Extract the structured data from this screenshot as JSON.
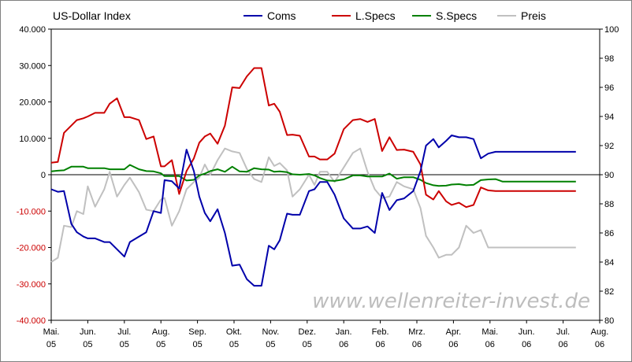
{
  "chart_data": {
    "type": "line",
    "title": "US-Dollar Index",
    "watermark": "www.wellenreiter-invest.de",
    "left_axis": {
      "ylim": [
        -40000,
        40000
      ],
      "ticks": [
        {
          "value": 40000,
          "label": "40.000",
          "negative": false
        },
        {
          "value": 30000,
          "label": "30.000",
          "negative": false
        },
        {
          "value": 20000,
          "label": "20.000",
          "negative": false
        },
        {
          "value": 10000,
          "label": "10.000",
          "negative": false
        },
        {
          "value": 0,
          "label": "0",
          "negative": false
        },
        {
          "value": -10000,
          "label": "-10.000",
          "negative": true
        },
        {
          "value": -20000,
          "label": "-20.000",
          "negative": true
        },
        {
          "value": -30000,
          "label": "-30.000",
          "negative": true
        },
        {
          "value": -40000,
          "label": "-40.000",
          "negative": true
        }
      ]
    },
    "right_axis": {
      "ylim": [
        80,
        100
      ],
      "ticks": [
        100,
        98,
        96,
        94,
        92,
        90,
        88,
        86,
        84,
        82,
        80
      ]
    },
    "x_axis": {
      "range": [
        0,
        15
      ],
      "labels": [
        {
          "month": "Mai.",
          "year": "05"
        },
        {
          "month": "Jun.",
          "year": "05"
        },
        {
          "month": "Jul.",
          "year": "05"
        },
        {
          "month": "Aug.",
          "year": "05"
        },
        {
          "month": "Sep.",
          "year": "05"
        },
        {
          "month": "Okt.",
          "year": "05"
        },
        {
          "month": "Nov.",
          "year": "05"
        },
        {
          "month": "Dez.",
          "year": "05"
        },
        {
          "month": "Jan.",
          "year": "06"
        },
        {
          "month": "Feb.",
          "year": "06"
        },
        {
          "month": "Mrz.",
          "year": "06"
        },
        {
          "month": "Apr.",
          "year": "06"
        },
        {
          "month": "Mai.",
          "year": "06"
        },
        {
          "month": "Jun.",
          "year": "06"
        },
        {
          "month": "Jul.",
          "year": "06"
        },
        {
          "month": "Aug.",
          "year": "06"
        }
      ]
    },
    "grid": false,
    "legend": "top",
    "series": [
      {
        "name": "Coms",
        "color": "#0000aa",
        "axis": "left",
        "x": [
          0,
          0.18,
          0.35,
          0.55,
          0.7,
          0.88,
          1.0,
          1.2,
          1.45,
          1.6,
          1.8,
          2.0,
          2.15,
          2.4,
          2.6,
          2.8,
          3.0,
          3.1,
          3.3,
          3.5,
          3.7,
          3.9,
          4.05,
          4.2,
          4.35,
          4.55,
          4.75,
          4.95,
          5.15,
          5.35,
          5.55,
          5.75,
          5.95,
          6.1,
          6.25,
          6.45,
          6.6,
          6.8,
          7.05,
          7.2,
          7.35,
          7.55,
          7.75,
          8.0,
          8.25,
          8.45,
          8.65,
          8.85,
          9.05,
          9.25,
          9.45,
          9.65,
          9.9,
          10.1,
          10.25,
          10.45,
          10.6,
          10.8,
          10.95,
          11.15,
          11.35,
          11.55,
          11.75,
          11.95,
          12.15,
          12.35,
          12.55,
          12.75,
          12.95,
          13.15,
          13.35,
          13.55,
          13.75,
          14.0,
          14.2,
          14.35
        ],
        "values": [
          -4000,
          -4700,
          -4500,
          -13500,
          -15800,
          -17000,
          -17500,
          -17500,
          -18500,
          -18500,
          -20500,
          -22500,
          -18500,
          -17000,
          -15800,
          -10000,
          -10500,
          -1500,
          -1800,
          -3800,
          6900,
          1000,
          -6000,
          -10500,
          -12800,
          -9500,
          -16000,
          -25000,
          -24700,
          -28700,
          -30500,
          -30500,
          -19500,
          -20500,
          -18000,
          -10700,
          -11000,
          -11000,
          -4500,
          -4000,
          -2000,
          -2000,
          -5500,
          -12000,
          -14800,
          -14800,
          -14200,
          -16000,
          -5000,
          -9700,
          -7000,
          -6500,
          -4500,
          1000,
          8000,
          9800,
          7500,
          9300,
          10800,
          10300,
          10300,
          9800,
          4500,
          5800,
          6300,
          6300,
          6300,
          6300,
          6300,
          6300,
          6300,
          6300,
          6300,
          6300,
          6300,
          6300
        ]
      },
      {
        "name": "L.Specs",
        "color": "#cc0000",
        "axis": "left",
        "x": [
          0,
          0.18,
          0.35,
          0.55,
          0.7,
          0.88,
          1.0,
          1.2,
          1.45,
          1.6,
          1.8,
          2.0,
          2.15,
          2.4,
          2.6,
          2.8,
          3.0,
          3.1,
          3.3,
          3.5,
          3.7,
          3.9,
          4.05,
          4.2,
          4.35,
          4.55,
          4.75,
          4.95,
          5.15,
          5.35,
          5.55,
          5.75,
          5.95,
          6.1,
          6.25,
          6.45,
          6.6,
          6.8,
          7.05,
          7.2,
          7.35,
          7.55,
          7.75,
          8.0,
          8.25,
          8.45,
          8.65,
          8.85,
          9.05,
          9.25,
          9.45,
          9.65,
          9.9,
          10.1,
          10.25,
          10.45,
          10.6,
          10.8,
          10.95,
          11.15,
          11.35,
          11.55,
          11.75,
          11.95,
          12.15,
          12.35,
          12.55,
          12.75,
          12.95,
          13.15,
          13.35,
          13.55,
          13.75,
          14.0,
          14.2,
          14.35
        ],
        "values": [
          3300,
          3500,
          11500,
          13500,
          15000,
          15500,
          16000,
          17000,
          17000,
          19500,
          21000,
          15800,
          15800,
          15000,
          9800,
          10500,
          2300,
          2300,
          4000,
          -5300,
          1000,
          4500,
          8800,
          10500,
          11300,
          8500,
          13500,
          24000,
          23800,
          27000,
          29300,
          29300,
          19000,
          19500,
          17300,
          10900,
          11000,
          10700,
          5000,
          5000,
          4200,
          4200,
          5800,
          12500,
          15000,
          15300,
          14500,
          15300,
          6500,
          10300,
          6800,
          6900,
          6300,
          2800,
          -5500,
          -6800,
          -4500,
          -7300,
          -8300,
          -7700,
          -8900,
          -8300,
          -3500,
          -4300,
          -4500,
          -4500,
          -4500,
          -4500,
          -4500,
          -4500,
          -4500,
          -4500,
          -4500,
          -4500,
          -4500,
          -4500
        ]
      },
      {
        "name": "S.Specs",
        "color": "#008000",
        "axis": "left",
        "x": [
          0,
          0.18,
          0.35,
          0.55,
          0.7,
          0.88,
          1.0,
          1.2,
          1.45,
          1.6,
          1.8,
          2.0,
          2.15,
          2.4,
          2.6,
          2.8,
          3.0,
          3.1,
          3.3,
          3.5,
          3.7,
          3.9,
          4.05,
          4.2,
          4.35,
          4.55,
          4.75,
          4.95,
          5.15,
          5.35,
          5.55,
          5.75,
          5.95,
          6.1,
          6.25,
          6.45,
          6.6,
          6.8,
          7.05,
          7.2,
          7.35,
          7.55,
          7.75,
          8.0,
          8.25,
          8.45,
          8.65,
          8.85,
          9.05,
          9.25,
          9.45,
          9.65,
          9.9,
          10.1,
          10.25,
          10.45,
          10.6,
          10.8,
          10.95,
          11.15,
          11.35,
          11.55,
          11.75,
          11.95,
          12.15,
          12.35,
          12.55,
          12.75,
          12.95,
          13.15,
          13.35,
          13.55,
          13.75,
          14.0,
          14.2,
          14.35
        ],
        "values": [
          900,
          1100,
          1200,
          2200,
          2200,
          2200,
          1800,
          1800,
          1800,
          1500,
          1500,
          1500,
          2700,
          1500,
          1000,
          900,
          400,
          -400,
          -400,
          -400,
          -1600,
          -1400,
          -200,
          300,
          1000,
          1500,
          800,
          2200,
          900,
          800,
          1800,
          1500,
          1400,
          800,
          900,
          700,
          100,
          0,
          200,
          -200,
          -900,
          -1600,
          -1700,
          -1300,
          -200,
          -200,
          -500,
          -500,
          -500,
          300,
          -1100,
          -700,
          -700,
          -1400,
          -2300,
          -2900,
          -3100,
          -3000,
          -2700,
          -2600,
          -2900,
          -2800,
          -1500,
          -1300,
          -1200,
          -1900,
          -1900,
          -1900,
          -1900,
          -1900,
          -1900,
          -1900,
          -1900,
          -1900,
          -1900,
          -1900
        ]
      },
      {
        "name": "Preis",
        "color": "#c0c0c0",
        "axis": "right",
        "x": [
          0,
          0.18,
          0.35,
          0.55,
          0.7,
          0.88,
          1.0,
          1.2,
          1.45,
          1.6,
          1.8,
          2.0,
          2.15,
          2.4,
          2.6,
          2.8,
          3.0,
          3.1,
          3.3,
          3.5,
          3.7,
          3.9,
          4.05,
          4.2,
          4.35,
          4.55,
          4.75,
          4.95,
          5.15,
          5.35,
          5.55,
          5.75,
          5.95,
          6.1,
          6.25,
          6.45,
          6.6,
          6.8,
          7.05,
          7.2,
          7.35,
          7.55,
          7.75,
          8.0,
          8.25,
          8.45,
          8.65,
          8.85,
          9.05,
          9.25,
          9.45,
          9.65,
          9.9,
          10.1,
          10.25,
          10.45,
          10.6,
          10.8,
          10.95,
          11.15,
          11.35,
          11.55,
          11.75,
          11.95,
          12.15,
          12.35,
          12.55,
          12.75,
          12.95,
          13.15,
          13.35,
          13.55,
          13.75,
          14.0,
          14.2,
          14.35
        ],
        "values": [
          84.0,
          84.3,
          86.5,
          86.4,
          87.5,
          87.3,
          89.2,
          87.8,
          89.0,
          90.2,
          88.5,
          89.3,
          89.8,
          88.8,
          87.6,
          87.5,
          88.3,
          88.4,
          86.5,
          87.5,
          89.0,
          89.5,
          89.8,
          90.7,
          90.0,
          91.0,
          91.8,
          91.6,
          91.5,
          90.4,
          89.7,
          89.5,
          91.2,
          90.6,
          90.8,
          90.3,
          88.5,
          89.0,
          90.0,
          89.3,
          90.2,
          90.2,
          89.5,
          90.5,
          91.5,
          91.8,
          90.2,
          89.0,
          88.4,
          88.5,
          89.5,
          89.2,
          89.0,
          87.7,
          85.8,
          85.0,
          84.3,
          84.5,
          84.5,
          85.0,
          86.5,
          86.0,
          86.2,
          85.0,
          85.0,
          85.0,
          85.0,
          85.0,
          85.0,
          85.0,
          85.0,
          85.0,
          85.0,
          85.0,
          85.0,
          85.0
        ]
      }
    ]
  }
}
